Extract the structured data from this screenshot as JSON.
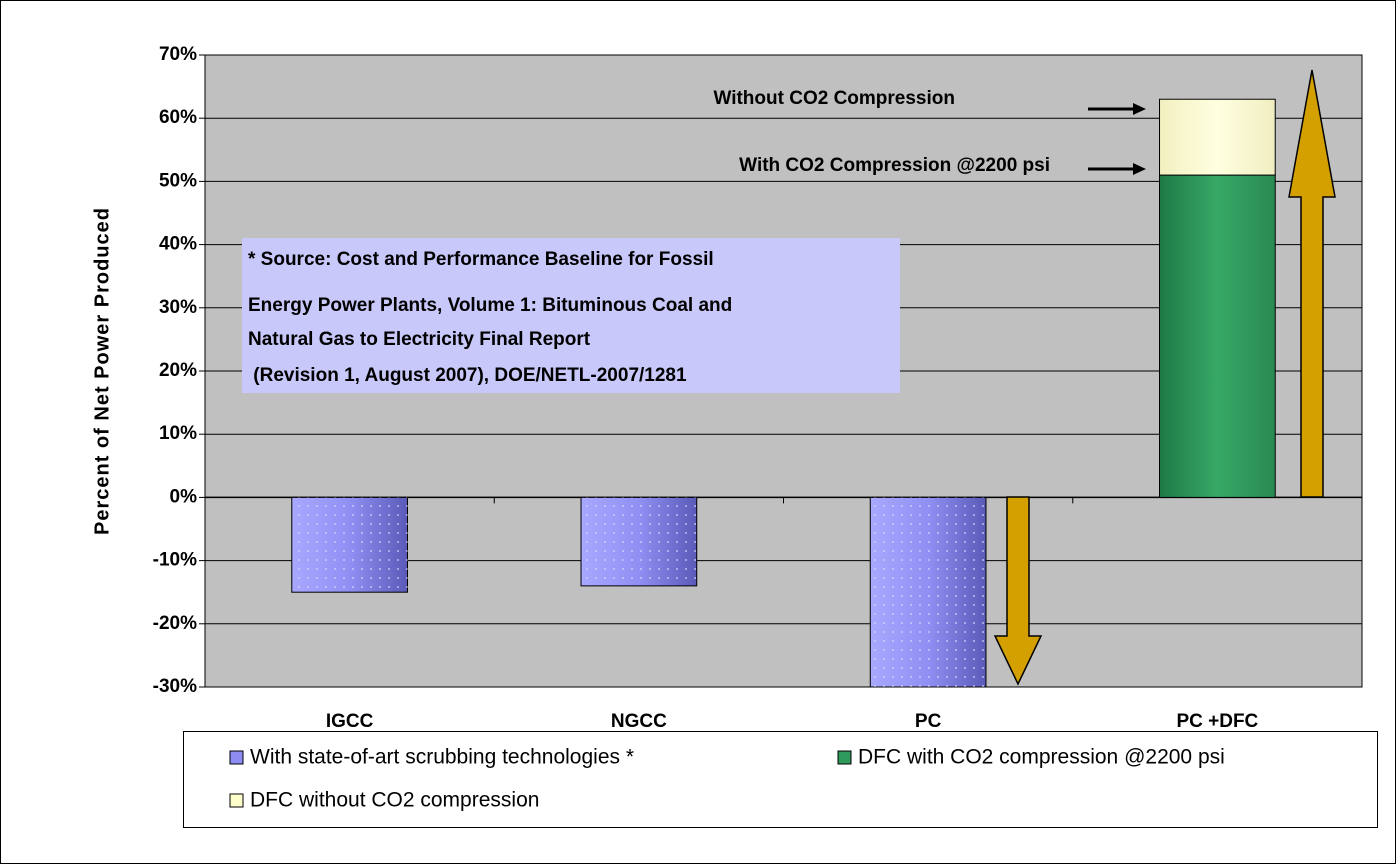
{
  "chart_data": {
    "type": "bar",
    "stacked": true,
    "y_label": "Percent of Net Power Produced",
    "categories": [
      "IGCC",
      "NGCC",
      "PC",
      "PC +DFC"
    ],
    "series": [
      {
        "name": "With state-of-art scrubbing technologies *",
        "color": "#8c8cf2",
        "values": [
          -15,
          -14,
          -30,
          null
        ]
      },
      {
        "name": "DFC with CO2 compression @2200 psi",
        "color": "#2e9a5c",
        "values": [
          null,
          null,
          null,
          51
        ]
      },
      {
        "name": "DFC without CO2 compression",
        "color": "#ffffcc",
        "values": [
          null,
          null,
          null,
          12
        ]
      }
    ],
    "ylim": [
      -30,
      70
    ],
    "yticks": [
      {
        "value": -30,
        "label": "-30%"
      },
      {
        "value": -20,
        "label": "-20%"
      },
      {
        "value": -10,
        "label": "-10%"
      },
      {
        "value": 0,
        "label": "0%"
      },
      {
        "value": 10,
        "label": "10%"
      },
      {
        "value": 20,
        "label": "20%"
      },
      {
        "value": 30,
        "label": "30%"
      },
      {
        "value": 40,
        "label": "40%"
      },
      {
        "value": 50,
        "label": "50%"
      },
      {
        "value": 60,
        "label": "60%"
      },
      {
        "value": 70,
        "label": "70%"
      }
    ],
    "grid": true,
    "legend": "bottom",
    "annotations": [
      "Without CO2 Compression",
      "With CO2 Compression @2200 psi"
    ],
    "source_note": [
      "* Source: Cost and Performance Baseline for Fossil",
      "Energy Power Plants, Volume 1: Bituminous Coal and",
      "Natural Gas to Electricity Final Report",
      " (Revision 1, August 2007), DOE/NETL-2007/1281"
    ]
  }
}
